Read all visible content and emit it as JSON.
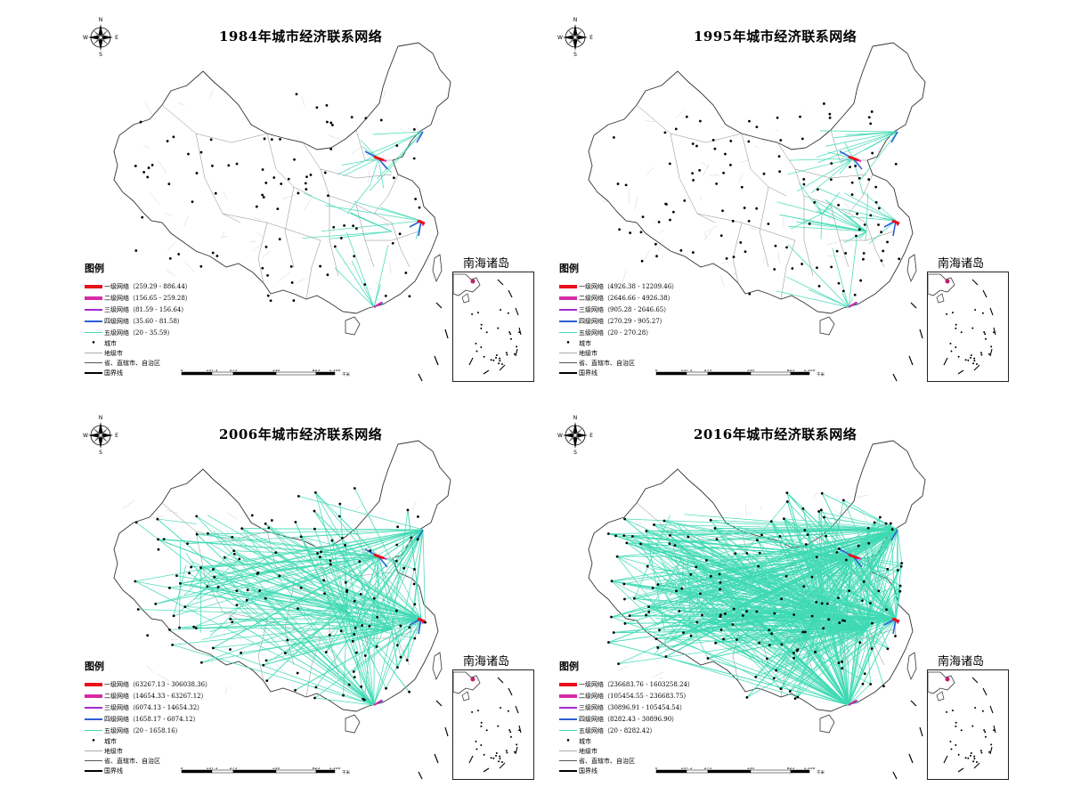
{
  "panels": [
    {
      "id": "p1984",
      "title": "1984年城市经济联系网络",
      "legend": [
        {
          "label": "一级网络（259.29 - 886.44）",
          "color": "#e8101a"
        },
        {
          "label": "二级网络（156.65 - 259.28）",
          "color": "#d62aa7"
        },
        {
          "label": "三级网络（81.59 - 156.64）",
          "color": "#a42bd0"
        },
        {
          "label": "四级网络（35.60 - 81.58）",
          "color": "#2c5fd4"
        },
        {
          "label": "五级网络（20 - 35.59）",
          "color": "#3fd9b4"
        }
      ],
      "density": 1
    },
    {
      "id": "p1995",
      "title": "1995年城市经济联系网络",
      "legend": [
        {
          "label": "一级网络（4926.38 - 12209.46）",
          "color": "#e8101a"
        },
        {
          "label": "二级网络（2646.66 - 4926.38）",
          "color": "#d62aa7"
        },
        {
          "label": "三级网络（905.28 - 2646.65）",
          "color": "#a42bd0"
        },
        {
          "label": "四级网络（270.29 - 905.27）",
          "color": "#2c5fd4"
        },
        {
          "label": "五级网络（20 - 270.28）",
          "color": "#3fd9b4"
        }
      ],
      "density": 2
    },
    {
      "id": "p2006",
      "title": "2006年城市经济联系网络",
      "legend": [
        {
          "label": "一级网络（63267.13 - 306038.36）",
          "color": "#e8101a"
        },
        {
          "label": "二级网络（14654.33 - 63267.12）",
          "color": "#d62aa7"
        },
        {
          "label": "三级网络（6074.13 - 14654.32）",
          "color": "#a42bd0"
        },
        {
          "label": "四级网络（1658.17 - 6074.12）",
          "color": "#2c5fd4"
        },
        {
          "label": "五级网络（20 - 1658.16）",
          "color": "#3fd9b4"
        }
      ],
      "density": 3
    },
    {
      "id": "p2016",
      "title": "2016年城市经济联系网络",
      "legend": [
        {
          "label": "一级网络（236683.76 - 1603258.24）",
          "color": "#e8101a"
        },
        {
          "label": "二级网络（105454.55 - 236683.75）",
          "color": "#d62aa7"
        },
        {
          "label": "三级网络（30896.91 - 105454.54）",
          "color": "#a42bd0"
        },
        {
          "label": "四级网络（8282.43 - 30896.90）",
          "color": "#2c5fd4"
        },
        {
          "label": "五级网络（20 - 8282.42）",
          "color": "#3fd9b4"
        }
      ],
      "density": 4
    }
  ],
  "common": {
    "legend_title": "图例",
    "city_label": "城市",
    "prefecture_label": "地级市",
    "province_label": "省、直辖市、自治区",
    "border_label": "国界线",
    "inset_title": "南海诸岛",
    "compass": {
      "n": "N",
      "s": "S",
      "e": "E",
      "w": "W"
    },
    "scale_ticks": [
      "0",
      "137.5",
      "275",
      "550",
      "825",
      "1,100"
    ],
    "scale_unit": "千米"
  },
  "colors": {
    "level1": "#e8101a",
    "level2": "#d62aa7",
    "level3": "#a42bd0",
    "level4": "#2c5fd4",
    "level5": "#3fd9b4",
    "border": "#555555"
  }
}
